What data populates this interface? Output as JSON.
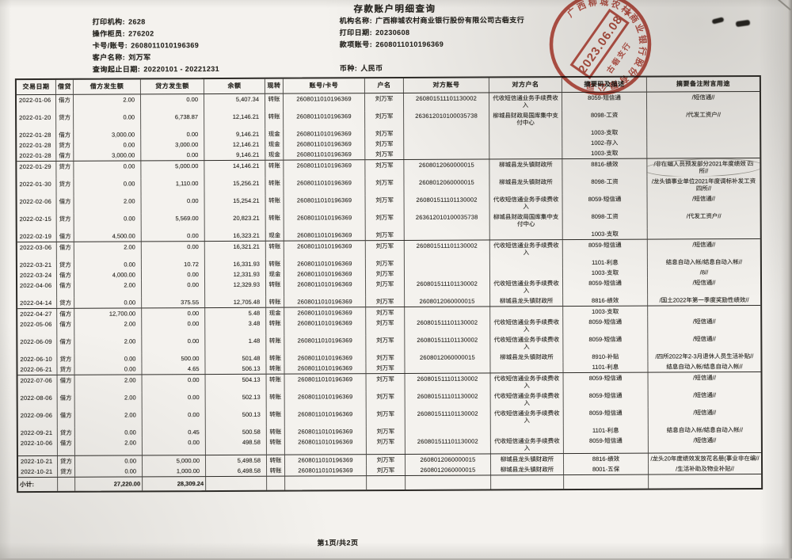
{
  "title": "存款账户明细查询",
  "meta": {
    "left": [
      {
        "label": "打印机构:",
        "value": "2628"
      },
      {
        "label": "操作柜员:",
        "value": "276202"
      },
      {
        "label": "卡号/账号:",
        "value": "2608011010196369"
      },
      {
        "label": "客户名称:",
        "value": "刘万军"
      },
      {
        "label": "查询起止日期:",
        "value": "20220101  -  20221231"
      }
    ],
    "right": [
      {
        "label": "机构名称:",
        "value": "广西柳城农村商业银行股份有限公司古砦支行"
      },
      {
        "label": "打印日期:",
        "value": "20230608"
      },
      {
        "label": "款项账号:",
        "value": "2608011010196369"
      }
    ],
    "currency": {
      "label": "币种:",
      "value": "人民币"
    }
  },
  "stamp": {
    "ring_text": "广西柳城农村商业银行股份有限公司",
    "date": "2023.06.08",
    "bottom_text": "古砦支行",
    "star": "★",
    "color": "#b23527"
  },
  "table": {
    "headers": [
      "交易日期",
      "借贷",
      "借方发生额",
      "贷方发生额",
      "余额",
      "现转",
      "账号/卡号",
      "户名",
      "对方账号",
      "对方户名",
      "摘要码及描述",
      "摘要备注附言用途"
    ],
    "groups": [
      [
        {
          "date": "2022-01-06",
          "dc": "借方",
          "debit": "2.00",
          "credit": "0.00",
          "balance": "5,407.34",
          "method": "转账",
          "account": "2608011010196369",
          "name": "刘万军",
          "cp_account": "260801511101130002",
          "cp_name": "代收短信通业务手续费收入",
          "summary": "8059-短信通",
          "remark": "/短信通//"
        },
        {
          "date": "2022-01-20",
          "dc": "贷方",
          "debit": "0.00",
          "credit": "6,738.87",
          "balance": "12,146.21",
          "method": "转账",
          "account": "2608011010196369",
          "name": "刘万军",
          "cp_account": "263612010100035738",
          "cp_name": "柳城县财政局国库集中支付中心",
          "summary": "8098-工资",
          "remark": "/代发工资户//"
        },
        {
          "date": "2022-01-28",
          "dc": "借方",
          "debit": "3,000.00",
          "credit": "0.00",
          "balance": "9,146.21",
          "method": "现金",
          "account": "2608011010196369",
          "name": "刘万军",
          "cp_account": "",
          "cp_name": "",
          "summary": "1003-支取",
          "remark": ""
        },
        {
          "date": "2022-01-28",
          "dc": "贷方",
          "debit": "0.00",
          "credit": "3,000.00",
          "balance": "12,146.21",
          "method": "现金",
          "account": "2608011010196369",
          "name": "刘万军",
          "cp_account": "",
          "cp_name": "",
          "summary": "1002-存入",
          "remark": ""
        },
        {
          "date": "2022-01-28",
          "dc": "借方",
          "debit": "3,000.00",
          "credit": "0.00",
          "balance": "9,146.21",
          "method": "现金",
          "account": "2608011010196369",
          "name": "刘万军",
          "cp_account": "",
          "cp_name": "",
          "summary": "1003-支取",
          "remark": ""
        }
      ],
      [
        {
          "date": "2022-01-29",
          "dc": "贷方",
          "debit": "0.00",
          "credit": "5,000.00",
          "balance": "14,146.21",
          "method": "转账",
          "account": "2608011010196369",
          "name": "刘万军",
          "cp_account": "2608012060000015",
          "cp_name": "柳城县龙头镇财政所",
          "summary": "8816-绩效",
          "remark": "/非在编人员预发部分2021年度绩效 四所//",
          "circled": true
        },
        {
          "date": "2022-01-30",
          "dc": "贷方",
          "debit": "0.00",
          "credit": "1,110.00",
          "balance": "15,256.21",
          "method": "转账",
          "account": "2608011010196369",
          "name": "刘万军",
          "cp_account": "2608012060000015",
          "cp_name": "柳城县龙头镇财政所",
          "summary": "8098-工资",
          "remark": "/龙头镇事业单位2021年度调标补发工资 四所//"
        },
        {
          "date": "2022-02-06",
          "dc": "借方",
          "debit": "2.00",
          "credit": "0.00",
          "balance": "15,254.21",
          "method": "转账",
          "account": "2608011010196369",
          "name": "刘万军",
          "cp_account": "260801511101130002",
          "cp_name": "代收短信通业务手续费收入",
          "summary": "8059-短信通",
          "remark": "/短信通//"
        },
        {
          "date": "2022-02-15",
          "dc": "贷方",
          "debit": "0.00",
          "credit": "5,569.00",
          "balance": "20,823.21",
          "method": "转账",
          "account": "2608011010196369",
          "name": "刘万军",
          "cp_account": "263612010100035738",
          "cp_name": "柳城县财政局国库集中支付中心",
          "summary": "8098-工资",
          "remark": "/代发工资户//"
        },
        {
          "date": "2022-02-19",
          "dc": "借方",
          "debit": "4,500.00",
          "credit": "0.00",
          "balance": "16,323.21",
          "method": "现金",
          "account": "2608011010196369",
          "name": "刘万军",
          "cp_account": "",
          "cp_name": "",
          "summary": "1003-支取",
          "remark": ""
        }
      ],
      [
        {
          "date": "2022-03-06",
          "dc": "借方",
          "debit": "2.00",
          "credit": "0.00",
          "balance": "16,321.21",
          "method": "转账",
          "account": "2608011010196369",
          "name": "刘万军",
          "cp_account": "260801511101130002",
          "cp_name": "代收短信通业务手续费收入",
          "summary": "8059-短信通",
          "remark": "/短信通//"
        },
        {
          "date": "2022-03-21",
          "dc": "贷方",
          "debit": "0.00",
          "credit": "10.72",
          "balance": "16,331.93",
          "method": "转账",
          "account": "2608011010196369",
          "name": "刘万军",
          "cp_account": "",
          "cp_name": "",
          "summary": "1101-利息",
          "remark": "结息自动入帐/结息自动入帐//"
        },
        {
          "date": "2022-03-24",
          "dc": "借方",
          "debit": "4,000.00",
          "credit": "0.00",
          "balance": "12,331.93",
          "method": "现金",
          "account": "2608011010196369",
          "name": "刘万军",
          "cp_account": "",
          "cp_name": "",
          "summary": "1003-支取",
          "remark": "/8//"
        },
        {
          "date": "2022-04-06",
          "dc": "借方",
          "debit": "2.00",
          "credit": "0.00",
          "balance": "12,329.93",
          "method": "转账",
          "account": "2608011010196369",
          "name": "刘万军",
          "cp_account": "260801511101130002",
          "cp_name": "代收短信通业务手续费收入",
          "summary": "8059-短信通",
          "remark": "/短信通//"
        },
        {
          "date": "2022-04-14",
          "dc": "贷方",
          "debit": "0.00",
          "credit": "375.55",
          "balance": "12,705.48",
          "method": "转账",
          "account": "2608011010196369",
          "name": "刘万军",
          "cp_account": "2608012060000015",
          "cp_name": "柳城县龙头镇财政所",
          "summary": "8816-绩效",
          "remark": "/国土2022年第一季度奖励性绩效//"
        }
      ],
      [
        {
          "date": "2022-04-27",
          "dc": "借方",
          "debit": "12,700.00",
          "credit": "0.00",
          "balance": "5.48",
          "method": "现金",
          "account": "2608011010196369",
          "name": "刘万军",
          "cp_account": "",
          "cp_name": "",
          "summary": "1003-支取",
          "remark": ""
        },
        {
          "date": "2022-05-06",
          "dc": "借方",
          "debit": "2.00",
          "credit": "0.00",
          "balance": "3.48",
          "method": "转账",
          "account": "2608011010196369",
          "name": "刘万军",
          "cp_account": "260801511101130002",
          "cp_name": "代收短信通业务手续费收入",
          "summary": "8059-短信通",
          "remark": "/短信通//"
        },
        {
          "date": "2022-06-09",
          "dc": "借方",
          "debit": "2.00",
          "credit": "0.00",
          "balance": "1.48",
          "method": "转账",
          "account": "2608011010196369",
          "name": "刘万军",
          "cp_account": "260801511101130002",
          "cp_name": "代收短信通业务手续费收入",
          "summary": "8059-短信通",
          "remark": "/短信通//"
        },
        {
          "date": "2022-06-10",
          "dc": "贷方",
          "debit": "0.00",
          "credit": "500.00",
          "balance": "501.48",
          "method": "转账",
          "account": "2608011010196369",
          "name": "刘万军",
          "cp_account": "2608012060000015",
          "cp_name": "柳城县龙头镇财政所",
          "summary": "8910-补贴",
          "remark": "/四所2022年2-3月退休人员生活补贴//"
        },
        {
          "date": "2022-06-21",
          "dc": "贷方",
          "debit": "0.00",
          "credit": "4.65",
          "balance": "506.13",
          "method": "转账",
          "account": "2608011010196369",
          "name": "刘万军",
          "cp_account": "",
          "cp_name": "",
          "summary": "1101-利息",
          "remark": "结息自动入帐/结息自动入帐//"
        }
      ],
      [
        {
          "date": "2022-07-06",
          "dc": "借方",
          "debit": "2.00",
          "credit": "0.00",
          "balance": "504.13",
          "method": "转账",
          "account": "2608011010196369",
          "name": "刘万军",
          "cp_account": "260801511101130002",
          "cp_name": "代收短信通业务手续费收入",
          "summary": "8059-短信通",
          "remark": "/短信通//"
        },
        {
          "date": "2022-08-06",
          "dc": "借方",
          "debit": "2.00",
          "credit": "0.00",
          "balance": "502.13",
          "method": "转账",
          "account": "2608011010196369",
          "name": "刘万军",
          "cp_account": "260801511101130002",
          "cp_name": "代收短信通业务手续费收入",
          "summary": "8059-短信通",
          "remark": "/短信通//"
        },
        {
          "date": "2022-09-06",
          "dc": "借方",
          "debit": "2.00",
          "credit": "0.00",
          "balance": "500.13",
          "method": "转账",
          "account": "2608011010196369",
          "name": "刘万军",
          "cp_account": "260801511101130002",
          "cp_name": "代收短信通业务手续费收入",
          "summary": "8059-短信通",
          "remark": "/短信通//"
        },
        {
          "date": "2022-09-21",
          "dc": "贷方",
          "debit": "0.00",
          "credit": "0.45",
          "balance": "500.58",
          "method": "转账",
          "account": "2608011010196369",
          "name": "刘万军",
          "cp_account": "",
          "cp_name": "",
          "summary": "1101-利息",
          "remark": "结息自动入帐/结息自动入帐//"
        },
        {
          "date": "2022-10-06",
          "dc": "借方",
          "debit": "2.00",
          "credit": "0.00",
          "balance": "498.58",
          "method": "转账",
          "account": "2608011010196369",
          "name": "刘万军",
          "cp_account": "260801511101130002",
          "cp_name": "代收短信通业务手续费收入",
          "summary": "8059-短信通",
          "remark": "/短信通//"
        }
      ],
      [
        {
          "date": "2022-10-21",
          "dc": "贷方",
          "debit": "0.00",
          "credit": "5,000.00",
          "balance": "5,498.58",
          "method": "转账",
          "account": "2608011010196369",
          "name": "刘万军",
          "cp_account": "2608012060000015",
          "cp_name": "柳城县龙头镇财政所",
          "summary": "8816-绩效",
          "remark": "/龙头20年度绩效发放花名册(事业非在编//"
        },
        {
          "date": "2022-10-21",
          "dc": "贷方",
          "debit": "0.00",
          "credit": "1,000.00",
          "balance": "6,498.58",
          "method": "转账",
          "account": "2608011010196369",
          "name": "刘万军",
          "cp_account": "2608012060000015",
          "cp_name": "柳城县龙头镇财政所",
          "summary": "8001-五保",
          "remark": "/生活补助及物业补贴//"
        }
      ]
    ],
    "subtotal": {
      "label": "小计:",
      "debit": "27,220.00",
      "credit": "28,309.24"
    }
  },
  "footer": {
    "page": "第1页/共2页"
  }
}
